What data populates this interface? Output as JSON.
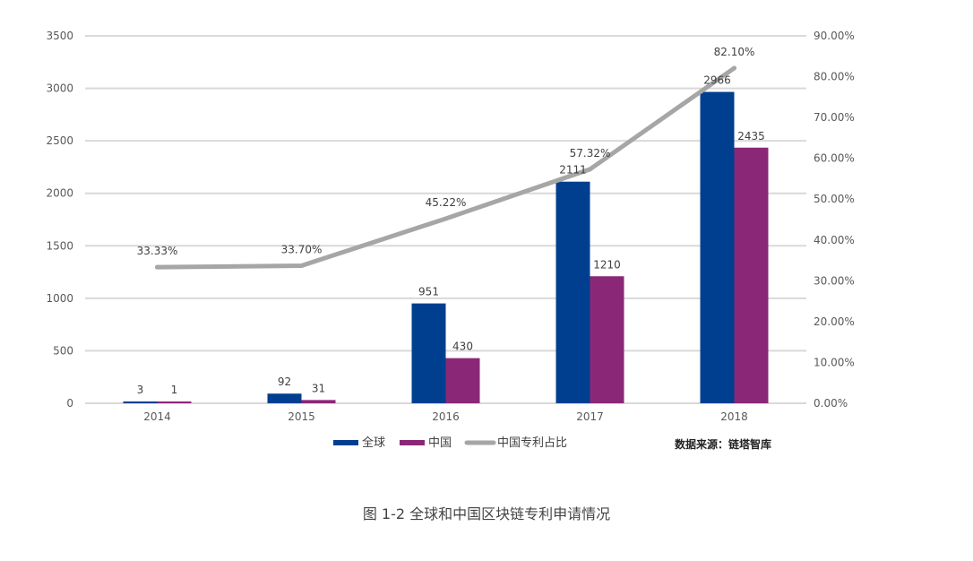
{
  "chart_data": {
    "type": "bar",
    "categories": [
      "2014",
      "2015",
      "2016",
      "2017",
      "2018"
    ],
    "series": [
      {
        "name": "全球",
        "kind": "bar",
        "axis": "left",
        "values": [
          3,
          92,
          951,
          2111,
          2966
        ],
        "labels": [
          "3",
          "92",
          "951",
          "2111",
          "2966"
        ]
      },
      {
        "name": "中国",
        "kind": "bar",
        "axis": "left",
        "values": [
          1,
          31,
          430,
          1210,
          2435
        ],
        "labels": [
          "1",
          "31",
          "430",
          "1210",
          "2435"
        ]
      },
      {
        "name": "中国专利占比",
        "kind": "line",
        "axis": "right",
        "values": [
          33.33,
          33.7,
          45.22,
          57.32,
          82.1
        ],
        "labels": [
          "33.33%",
          "33.70%",
          "45.22%",
          "57.32%",
          "82.10%"
        ]
      }
    ],
    "ylim": [
      0,
      3500
    ],
    "y_ticks": [
      "0",
      "500",
      "1000",
      "1500",
      "2000",
      "2500",
      "3000",
      "3500"
    ],
    "y2lim": [
      0,
      90
    ],
    "y2_ticks": [
      "0.00%",
      "10.00%",
      "20.00%",
      "30.00%",
      "40.00%",
      "50.00%",
      "60.00%",
      "70.00%",
      "80.00%",
      "90.00%"
    ],
    "grid": true,
    "legend_position": "bottom",
    "colors": {
      "全球": "#003f8f",
      "中国": "#8b2777",
      "中国专利占比": "#a6a6a6"
    },
    "source_note": "数据来源：链塔智库"
  },
  "caption": "图 1-2 全球和中国区块链专利申请情况"
}
